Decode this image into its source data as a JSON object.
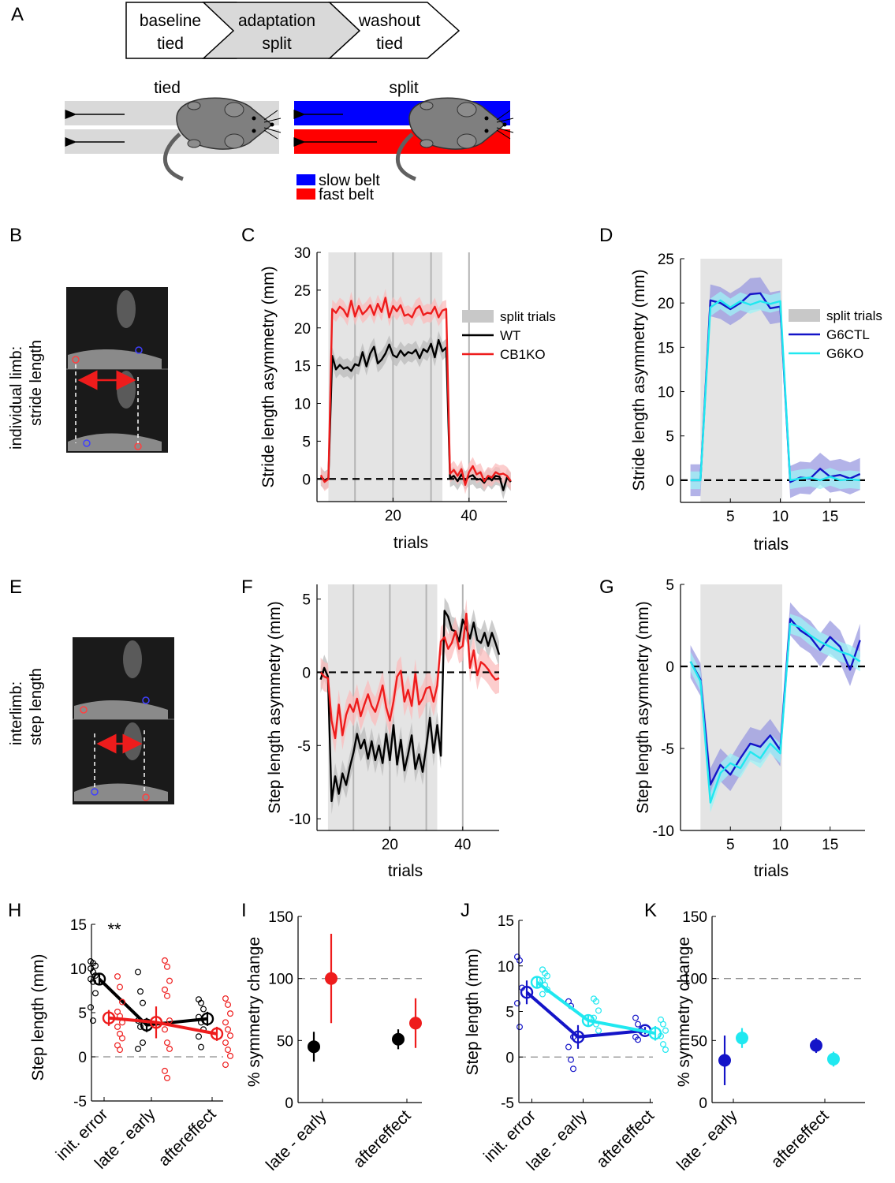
{
  "panel_letters": {
    "a": "A",
    "b": "B",
    "c": "C",
    "d": "D",
    "e": "E",
    "f": "F",
    "g": "G",
    "h": "H",
    "i": "I",
    "j": "J",
    "k": "K"
  },
  "protocol": {
    "steps": [
      {
        "line1": "baseline",
        "line2": "tied"
      },
      {
        "line1": "adaptation",
        "line2": "split"
      },
      {
        "line1": "washout",
        "line2": "tied"
      }
    ]
  },
  "treadmill": {
    "tied_label": "tied",
    "split_label": "split",
    "legend": [
      {
        "label": "slow belt",
        "color": "#0000ff"
      },
      {
        "label": "fast belt",
        "color": "#ff0000"
      }
    ]
  },
  "photos": {
    "b_caption_line1": "individual limb:",
    "b_caption_line2": "stride length",
    "e_caption_line1": "interlimb:",
    "e_caption_line2": "step  length"
  },
  "colors": {
    "wt": "#000000",
    "cb1ko": "#ee1c1c",
    "g6ctl": "#1414c8",
    "g6ko": "#20e8f0",
    "shade": "#e4e4e4",
    "wt_band": "#bbbbbb",
    "cb1ko_band": "#fbbcbc",
    "g6ctl_band": "#9a9ae0",
    "g6ko_band": "#9ff3f5"
  },
  "chart_data": [
    {
      "id": "C",
      "type": "line",
      "ylabel": "Stride length asymmetry (mm)",
      "xlabel": "trials",
      "xlim": [
        0,
        50
      ],
      "ylim": [
        -3,
        30
      ],
      "xticks": [
        20,
        40
      ],
      "yticks": [
        0,
        5,
        10,
        15,
        20,
        25,
        30
      ],
      "shade": [
        3,
        33
      ],
      "vlines": [
        10,
        20,
        30,
        40
      ],
      "zero_line": true,
      "legend": {
        "shade_label": "split trials",
        "entries": [
          "WT",
          "CB1KO"
        ],
        "position": "right"
      },
      "series": [
        {
          "name": "WT",
          "band": 1.2,
          "values": [
            0.3,
            -0.2,
            0.1,
            16.3,
            14.5,
            15.1,
            14.6,
            14.8,
            14.3,
            15.2,
            15.0,
            16.8,
            14.9,
            16.6,
            17.5,
            15.3,
            15.8,
            16.6,
            17.8,
            16.4,
            16.1,
            17.0,
            16.3,
            16.8,
            16.6,
            17.1,
            16.0,
            17.2,
            16.8,
            17.9,
            16.1,
            18.4,
            16.9,
            17.4,
            0.1,
            0.4,
            -0.3,
            0.6,
            -0.2,
            0.3,
            0.5,
            -0.1,
            0.0,
            -0.5,
            0.3,
            -0.2,
            0.4,
            0.3,
            -1.5,
            0.2,
            -0.4
          ]
        },
        {
          "name": "CB1KO",
          "band": 1.2,
          "values": [
            0.5,
            -0.4,
            0.0,
            22.5,
            22.0,
            22.8,
            22.4,
            21.5,
            23.6,
            21.5,
            22.9,
            21.8,
            22.3,
            23.0,
            21.7,
            23.2,
            22.1,
            24.0,
            21.4,
            22.9,
            22.2,
            23.0,
            21.6,
            21.8,
            21.4,
            22.5,
            22.9,
            21.7,
            22.0,
            21.9,
            22.8,
            21.4,
            22.3,
            22.5,
            0.7,
            1.2,
            0.4,
            1.3,
            -0.8,
            0.9,
            1.7,
            0.6,
            0.9,
            -0.3,
            0.4,
            0.2,
            0.9,
            0.6,
            0.7,
            0.4,
            -0.3
          ]
        }
      ]
    },
    {
      "id": "D",
      "type": "line",
      "ylabel": "Stride length asymmetry (mm)",
      "xlabel": "trials",
      "xlim": [
        0,
        18.5
      ],
      "ylim": [
        -2.5,
        25
      ],
      "xticks": [
        5,
        10,
        15
      ],
      "yticks": [
        0,
        5,
        10,
        15,
        20,
        25
      ],
      "shade": [
        2,
        10.2
      ],
      "zero_line": true,
      "legend": {
        "shade_label": "split trials",
        "entries": [
          "G6CTL",
          "G6KO"
        ],
        "position": "right"
      },
      "series": [
        {
          "name": "G6CTL",
          "band": 1.8,
          "x": [
            1,
            2,
            3,
            4,
            5,
            6,
            7,
            8,
            9,
            10,
            11,
            12,
            13,
            14,
            15,
            16,
            17,
            18
          ],
          "values": [
            0,
            0,
            20.3,
            20.0,
            19.3,
            20.0,
            21.0,
            21.1,
            19.4,
            19.6,
            -0.2,
            0.3,
            0.2,
            1.3,
            0.4,
            0.6,
            0.2,
            0.7
          ]
        },
        {
          "name": "G6KO",
          "band": 1.0,
          "x": [
            1,
            2,
            3,
            4,
            5,
            6,
            7,
            8,
            9,
            10,
            11,
            12,
            13,
            14,
            15,
            16,
            17,
            18
          ],
          "values": [
            0,
            0,
            19.5,
            20.3,
            19.5,
            20.2,
            19.8,
            20.2,
            19.9,
            20.2,
            0.0,
            0.2,
            0.3,
            0.0,
            0.4,
            0.0,
            0.1,
            0.0
          ]
        }
      ]
    },
    {
      "id": "F",
      "type": "line",
      "ylabel": "Step length asymmetry (mm)",
      "xlabel": "trials",
      "xlim": [
        0,
        50
      ],
      "ylim": [
        -10.8,
        6
      ],
      "xticks": [
        20,
        40
      ],
      "yticks": [
        -10,
        -5,
        0,
        5
      ],
      "shade": [
        3,
        33
      ],
      "vlines": [
        10,
        20,
        30,
        40
      ],
      "zero_line": true,
      "series": [
        {
          "name": "WT",
          "band": 0.9,
          "values": [
            -0.5,
            0.3,
            -0.3,
            -8.8,
            -7.1,
            -8.3,
            -6.9,
            -7.7,
            -6.5,
            -5.5,
            -4.2,
            -5.2,
            -4.6,
            -5.9,
            -4.7,
            -6.0,
            -5.0,
            -6.2,
            -4.2,
            -6.0,
            -3.6,
            -6.3,
            -4.6,
            -6.7,
            -5.6,
            -4.3,
            -6.6,
            -5.6,
            -6.8,
            -5.1,
            -3.1,
            -5.5,
            -3.6,
            -5.7,
            4.2,
            3.8,
            2.9,
            2.8,
            2.1,
            3.6,
            3.0,
            2.3,
            3.4,
            2.2,
            2.0,
            2.7,
            1.8,
            2.7,
            2.0,
            1.2
          ]
        },
        {
          "name": "CB1KO",
          "band": 1.0,
          "values": [
            0.0,
            -0.3,
            -0.4,
            -3.3,
            -4.5,
            -2.2,
            -4.3,
            -2.9,
            -2.2,
            -2.7,
            -1.8,
            -3.0,
            -2.2,
            -1.5,
            -2.3,
            -2.7,
            -1.9,
            -0.9,
            -2.4,
            -3.3,
            -2.0,
            -0.3,
            0.1,
            -2.0,
            -1.2,
            -2.3,
            -0.1,
            -2.2,
            -1.8,
            -1.1,
            -1.0,
            -2.0,
            -0.9,
            2.1,
            2.4,
            1.6,
            2.0,
            2.8,
            1.6,
            1.8,
            4.0,
            0.3,
            1.5,
            -0.2,
            0.7,
            0.5,
            0.2,
            -0.2,
            -0.5,
            -0.4
          ]
        }
      ]
    },
    {
      "id": "G",
      "type": "line",
      "ylabel": "Step length asymmetry (mm)",
      "xlabel": "trials",
      "xlim": [
        0,
        18.5
      ],
      "ylim": [
        -10,
        5
      ],
      "xticks": [
        5,
        10,
        15
      ],
      "yticks": [
        -10,
        -5,
        0,
        5
      ],
      "shade": [
        2,
        10.2
      ],
      "zero_line": true,
      "series": [
        {
          "name": "G6CTL",
          "band": 1.0,
          "x": [
            1,
            2,
            3,
            4,
            5,
            6,
            7,
            8,
            9,
            10,
            11,
            12,
            13,
            14,
            15,
            16,
            17,
            18
          ],
          "values": [
            0.3,
            -0.8,
            -7.2,
            -6.0,
            -6.6,
            -5.6,
            -4.7,
            -4.9,
            -4.2,
            -5.1,
            2.9,
            2.2,
            1.8,
            1.0,
            1.8,
            1.2,
            -0.2,
            1.6
          ]
        },
        {
          "name": "G6KO",
          "band": 0.6,
          "x": [
            1,
            2,
            3,
            4,
            5,
            6,
            7,
            8,
            9,
            10,
            11,
            12,
            13,
            14,
            15,
            16,
            17,
            18
          ],
          "values": [
            0.3,
            -0.9,
            -8.3,
            -6.5,
            -5.9,
            -6.2,
            -5.2,
            -5.6,
            -4.7,
            -5.3,
            2.6,
            2.4,
            1.9,
            1.5,
            1.2,
            0.9,
            0.7,
            0.3
          ]
        }
      ]
    },
    {
      "id": "H",
      "type": "scatter",
      "ylabel": "Step length (mm)",
      "ylim": [
        -5,
        15
      ],
      "yticks": [
        -5,
        0,
        5,
        10,
        15
      ],
      "categories": [
        "init. error",
        "late - early",
        "aftereffect"
      ],
      "annotation": "**",
      "series": [
        {
          "name": "WT",
          "means": [
            8.8,
            3.6,
            4.3
          ],
          "sems": [
            0.7,
            0.8,
            0.8
          ],
          "points": [
            [
              10.8,
              10.6,
              10.3,
              10.0,
              9.6,
              9.2,
              8.8,
              8.5,
              7.2,
              5.6,
              4.1
            ],
            [
              9.6,
              7.4,
              6.1,
              4.1,
              3.4,
              1.6,
              0.9
            ],
            [
              6.5,
              6.1,
              5.4,
              4.5,
              3.9,
              3.1,
              2.3,
              1.1
            ]
          ]
        },
        {
          "name": "CB1KO",
          "means": [
            4.4,
            3.9,
            2.6
          ],
          "sems": [
            0.9,
            1.8,
            0.8
          ],
          "points": [
            [
              9.1,
              7.9,
              6.2,
              5.1,
              4.6,
              3.9,
              3.4,
              2.6,
              2.1,
              1.3,
              0.8
            ],
            [
              10.9,
              10.2,
              8.6,
              7.6,
              6.9,
              4.1,
              3.1,
              1.6,
              0.9,
              -1.6,
              -2.4
            ],
            [
              6.6,
              5.9,
              4.9,
              3.9,
              3.1,
              2.4,
              1.6,
              0.8,
              0.1,
              -0.9
            ]
          ]
        }
      ]
    },
    {
      "id": "I",
      "type": "scatter",
      "ylabel": "% symmetry change",
      "ylim": [
        0,
        150
      ],
      "yticks": [
        0,
        50,
        100,
        150
      ],
      "ref_line": 100,
      "categories": [
        "late - early",
        "aftereffect"
      ],
      "series": [
        {
          "name": "WT",
          "means": [
            45,
            51
          ],
          "sems": [
            12,
            8
          ]
        },
        {
          "name": "CB1KO",
          "means": [
            100,
            64
          ],
          "sems": [
            36,
            20
          ]
        }
      ]
    },
    {
      "id": "J",
      "type": "scatter",
      "ylabel": "Step length (mm)",
      "ylim": [
        -5,
        15
      ],
      "yticks": [
        -5,
        0,
        5,
        10,
        15
      ],
      "categories": [
        "init. error",
        "late - early",
        "aftereffect"
      ],
      "series": [
        {
          "name": "G6CTL",
          "means": [
            7.1,
            2.2,
            2.9
          ],
          "sems": [
            1.3,
            1.3,
            0.4
          ],
          "points": [
            [
              11.0,
              10.6,
              7.6,
              5.9,
              3.3
            ],
            [
              6.1,
              5.6,
              2.2,
              1.1,
              -0.3,
              -1.3
            ],
            [
              4.3,
              3.6,
              2.9,
              2.2,
              1.9
            ]
          ]
        },
        {
          "name": "G6KO",
          "means": [
            8.2,
            4.0,
            2.6
          ],
          "sems": [
            0.6,
            0.7,
            0.8
          ],
          "points": [
            [
              9.6,
              9.2,
              8.9,
              8.4,
              7.9,
              7.4,
              6.9
            ],
            [
              6.4,
              6.1,
              5.1,
              4.3,
              3.6,
              2.9
            ],
            [
              4.1,
              3.6,
              2.9,
              2.3,
              1.4,
              0.8
            ]
          ]
        }
      ]
    },
    {
      "id": "K",
      "type": "scatter",
      "ylabel": "% symmetry change",
      "ylim": [
        0,
        150
      ],
      "yticks": [
        0,
        50,
        100,
        150
      ],
      "ref_line": 100,
      "categories": [
        "late - early",
        "aftereffect"
      ],
      "series": [
        {
          "name": "G6CTL",
          "means": [
            34,
            46
          ],
          "sems": [
            20,
            6
          ]
        },
        {
          "name": "G6KO",
          "means": [
            52,
            35
          ],
          "sems": [
            8,
            6
          ]
        }
      ]
    }
  ]
}
